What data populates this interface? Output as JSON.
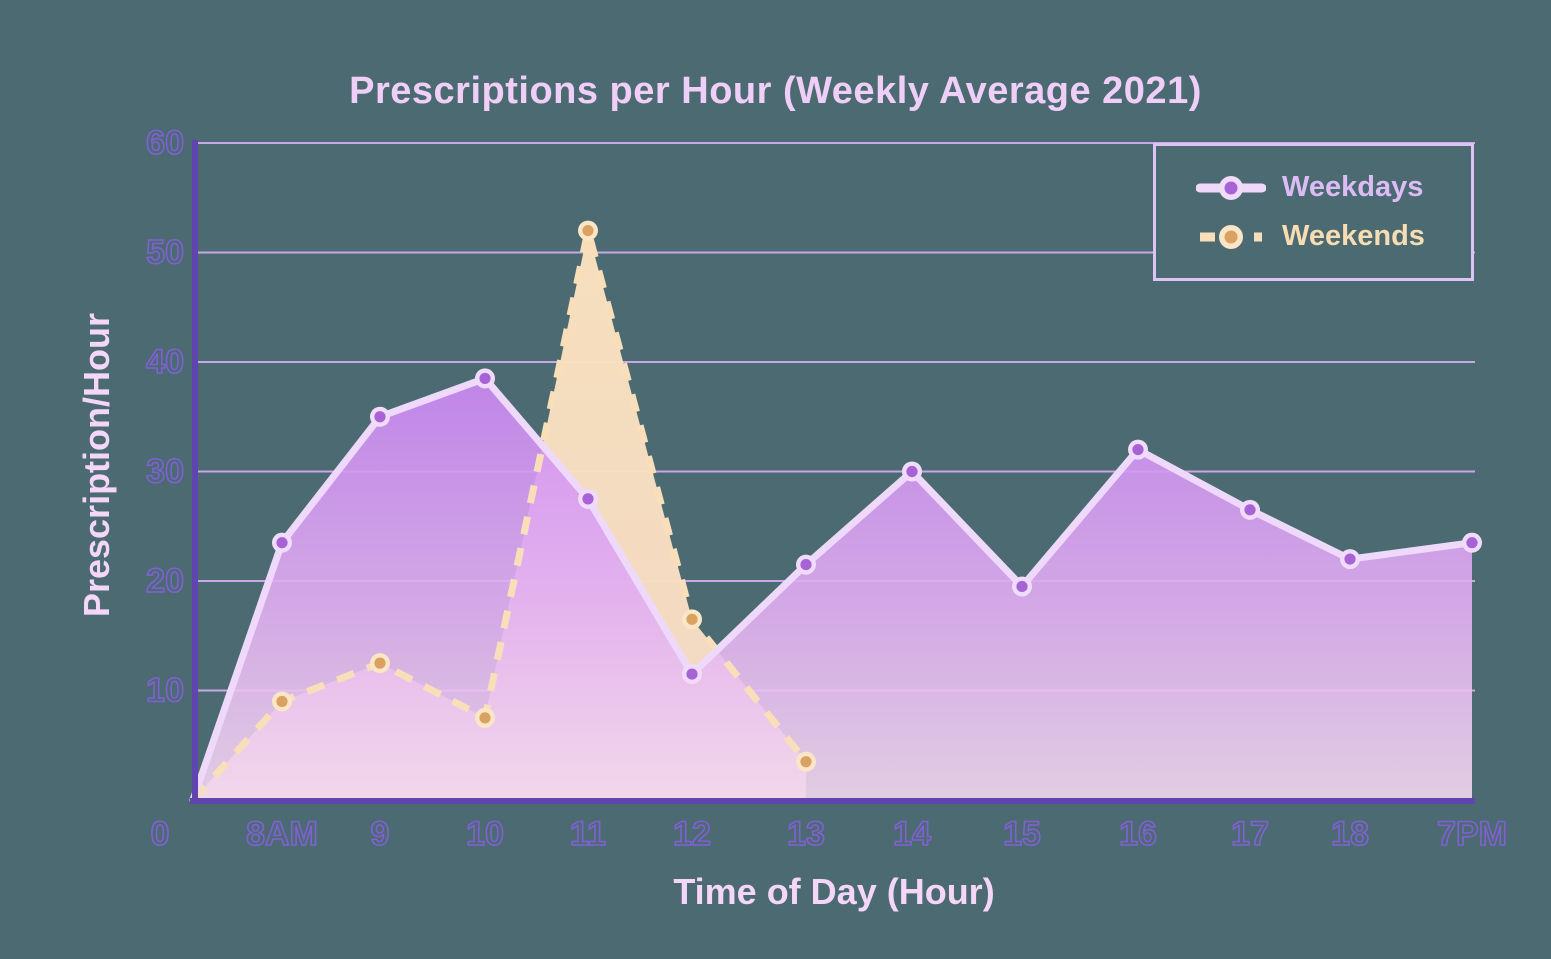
{
  "colors": {
    "background": "#4C6A72",
    "title": "#EFCEF7",
    "axis_titles": "#F4D6F8",
    "tick_stroke": "#8160D6",
    "axis_line": "#6044B0",
    "gridline": "#C9A8E8",
    "legend_border": "#DCC4F2"
  },
  "chart_data": {
    "type": "line",
    "title": "Prescriptions per Hour (Weekly Average 2021)",
    "xlabel": "Time of Day (Hour)",
    "ylabel": "Prescription/Hour",
    "categories": [
      "0",
      "8AM",
      "9",
      "10",
      "11",
      "12",
      "13",
      "14",
      "15",
      "16",
      "17",
      "18",
      "7PM"
    ],
    "yticks": [
      0,
      10,
      20,
      30,
      40,
      50,
      60
    ],
    "ylim": [
      0,
      60
    ],
    "grid": true,
    "legend_position": "top-right",
    "series": [
      {
        "name": "Weekdays",
        "style": "solid",
        "values": [
          0,
          23.5,
          35,
          38.5,
          27.5,
          11.5,
          21.5,
          30,
          19.5,
          32,
          26.5,
          22,
          23.5
        ],
        "line_color": "#EFD9FA",
        "marker_color": "#A763D6",
        "marker_ring": "#F0DCFA",
        "label_color": "#DCBCF4",
        "fill_top": "#CC87F5",
        "fill_mid": "#E2AFF2",
        "fill_bottom": "#F2D8EF"
      },
      {
        "name": "Weekends",
        "style": "dashed",
        "values": [
          0,
          9,
          12.5,
          7.5,
          52,
          16.5,
          3.5
        ],
        "line_color": "#F8DFBA",
        "marker_color": "#D9A263",
        "marker_ring": "#FAE6C6",
        "label_color": "#F8DDB2",
        "fill_top": "#FBE2BF",
        "fill_bottom": "#F7DCC6"
      }
    ]
  }
}
